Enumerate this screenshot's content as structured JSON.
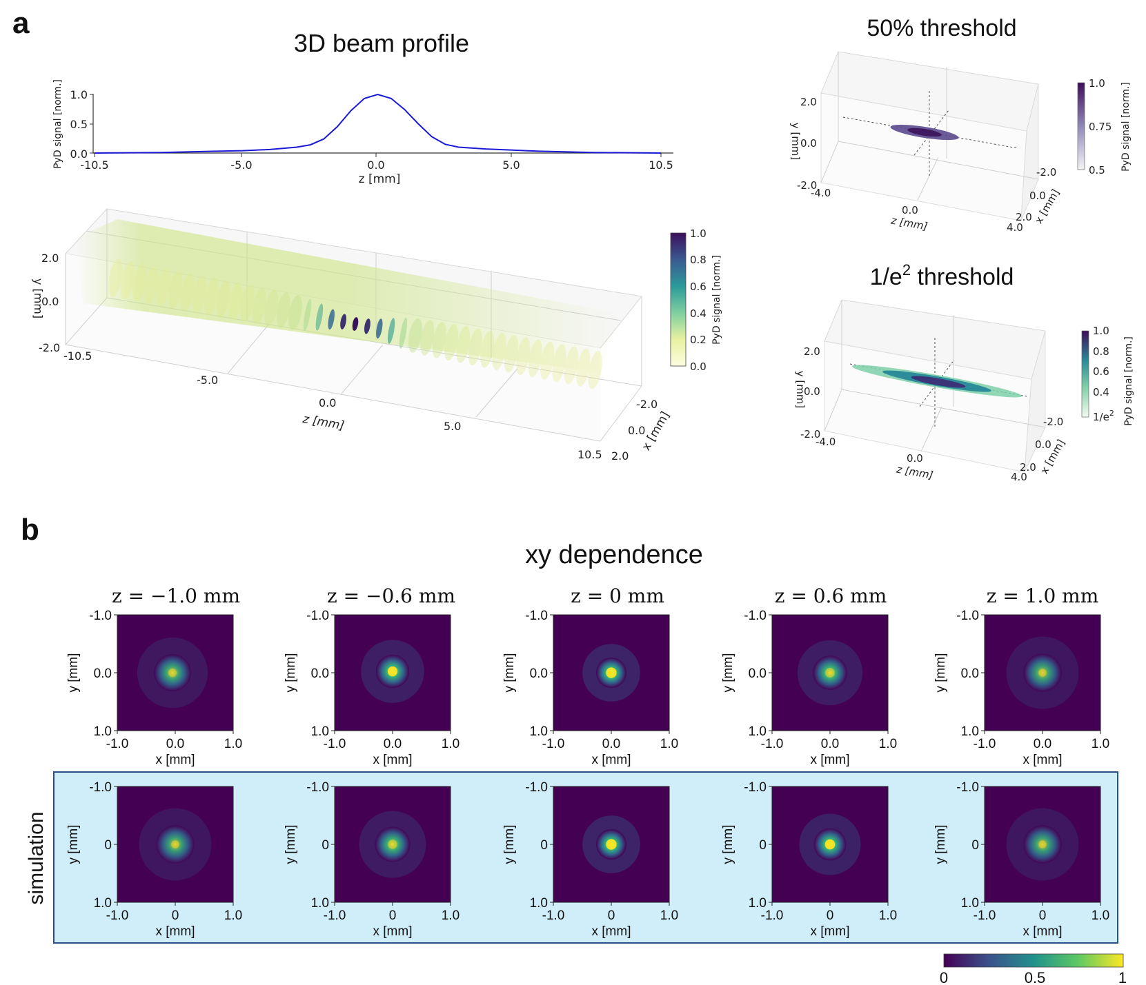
{
  "panel_a": {
    "label": "a",
    "title": "3D beam profile",
    "profile_plot": {
      "ylabel": "PyD signal [norm.]",
      "xlabel": "z [mm]",
      "yticks": [
        "1.0",
        "0.5",
        "0.0"
      ],
      "xticks": [
        "-10.5",
        "-5.0",
        "0.0",
        "5.0",
        "10.5"
      ]
    },
    "volume3d": {
      "ylabel": "y [mm]",
      "yticks": [
        "2.0",
        "0.0",
        "-2.0"
      ],
      "zlabel": "z [mm]",
      "zticks": [
        "-10.5",
        "-5.0",
        "0.0",
        "5.0",
        "10.5"
      ],
      "xlabel": "x [mm]",
      "xticks": [
        "-2.0",
        "0.0",
        "2.0"
      ],
      "colorbar_label": "PyD signal [norm.]",
      "colorbar_ticks": [
        "1.0",
        "0.8",
        "0.6",
        "0.4",
        "0.2",
        "0.0"
      ]
    },
    "threshold50": {
      "title": "50% threshold",
      "ylabel": "y [mm]",
      "yticks": [
        "2.0",
        "0.0",
        "-2.0"
      ],
      "zlabel": "z [mm]",
      "zticks": [
        "-4.0",
        "0.0",
        "4.0"
      ],
      "xlabel": "x [mm]",
      "xticks": [
        "-2.0",
        "0.0",
        "2.0"
      ],
      "colorbar_label": "PyD signal [norm.]",
      "colorbar_ticks": [
        "1.0",
        "0.75",
        "0.5"
      ]
    },
    "threshold_e2": {
      "title_main": "1/e",
      "title_sup": "2",
      "title_rest": " threshold",
      "ylabel": "y [mm]",
      "yticks": [
        "2.0",
        "0.0",
        "-2.0"
      ],
      "zlabel": "z [mm]",
      "zticks": [
        "-4.0",
        "0.0",
        "4.0"
      ],
      "xlabel": "x [mm]",
      "xticks": [
        "-2.0",
        "0.0",
        "2.0"
      ],
      "colorbar_label": "PyD signal [norm.]",
      "colorbar_ticks": [
        "1.0",
        "0.8",
        "0.6",
        "0.4"
      ],
      "colorbar_bottom_main": "1/e",
      "colorbar_bottom_sup": "2"
    }
  },
  "panel_b": {
    "label": "b",
    "title": "xy dependence",
    "row_label_simulation": "simulation",
    "measurement": {
      "ylabel": "y [mm]",
      "xlabel": "x [mm]",
      "yticks": [
        "-1.0",
        "0.0",
        "1.0"
      ],
      "xticks": [
        "-1.0",
        "0.0",
        "1.0"
      ]
    },
    "simulation": {
      "ylabel": "y [mm]",
      "xlabel": "x [mm]",
      "yticks": [
        "-1.0",
        "0",
        "1.0"
      ],
      "xticks": [
        "-1.0",
        "0",
        "1.0"
      ]
    },
    "slices": [
      {
        "title": "z = −1.0 mm"
      },
      {
        "title": "z = −0.6 mm"
      },
      {
        "title": "z = 0 mm"
      },
      {
        "title": "z = 0.6 mm"
      },
      {
        "title": "z = 1.0 mm"
      }
    ],
    "colorbar_ticks": [
      "0",
      "0.5",
      "1"
    ]
  },
  "chart_data": [
    {
      "type": "line",
      "title": "3D beam profile",
      "xlabel": "z [mm]",
      "ylabel": "PyD signal [norm.]",
      "xlim": [
        -10.5,
        10.5
      ],
      "ylim": [
        0,
        1
      ],
      "color": "#1a1ad6",
      "x": [
        -10.5,
        -8,
        -6,
        -5,
        -4,
        -3,
        -2.5,
        -2,
        -1.5,
        -1,
        -0.5,
        0,
        0.5,
        1,
        1.5,
        2,
        2.5,
        3,
        4,
        5,
        6,
        8,
        10.5
      ],
      "y": [
        0.0,
        0.01,
        0.03,
        0.04,
        0.06,
        0.1,
        0.14,
        0.24,
        0.45,
        0.72,
        0.93,
        1.0,
        0.93,
        0.74,
        0.5,
        0.28,
        0.15,
        0.1,
        0.07,
        0.05,
        0.03,
        0.01,
        0.0
      ]
    },
    {
      "type": "heatmap",
      "title": "xy dependence",
      "xlabel": "x [mm]",
      "ylabel": "y [mm]",
      "xlim": [
        -1.0,
        1.0
      ],
      "ylim": [
        -1.0,
        1.0
      ],
      "colormap": "viridis",
      "color_range": [
        0,
        1
      ],
      "measured_peak": [
        0.65,
        0.85,
        1.0,
        0.8,
        0.6
      ],
      "simulated_peak": [
        0.6,
        0.75,
        1.0,
        0.9,
        0.6
      ],
      "z_mm": [
        -1.0,
        -0.6,
        0,
        0.6,
        1.0
      ]
    }
  ],
  "colors": {
    "sim_bg": "#d0eef9",
    "sim_border": "#2b4f8a",
    "line": "#1a1ad6",
    "viridis_dark": "#440154"
  }
}
